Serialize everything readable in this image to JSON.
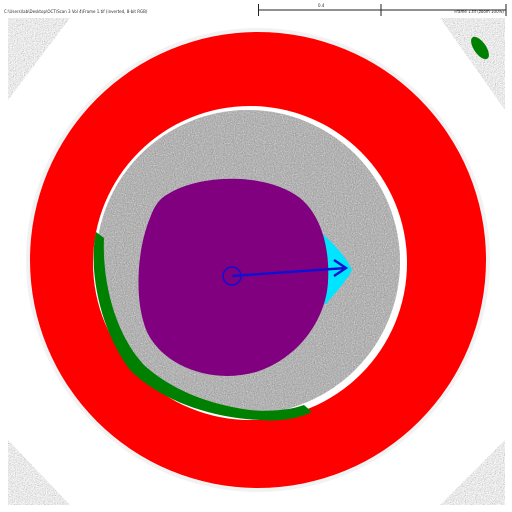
{
  "viewer": {
    "info_left": "C:\\Users\\lab\\Desktop\\OCT\\Scan 3 Vol 4\\Frame 1.tif (inverted, 8-bit RGB)",
    "info_right": "Frame 1.tif (zoom 100%)",
    "scale_label": "0.4"
  },
  "segmentation": {
    "region_colors": {
      "outer_ring": "#ff0000",
      "inner_core": "#800080",
      "cyan_region": "#00e5ff",
      "green_region": "#008000",
      "arrow": "#1010d0"
    },
    "icon": "direction-arrow-icon"
  }
}
